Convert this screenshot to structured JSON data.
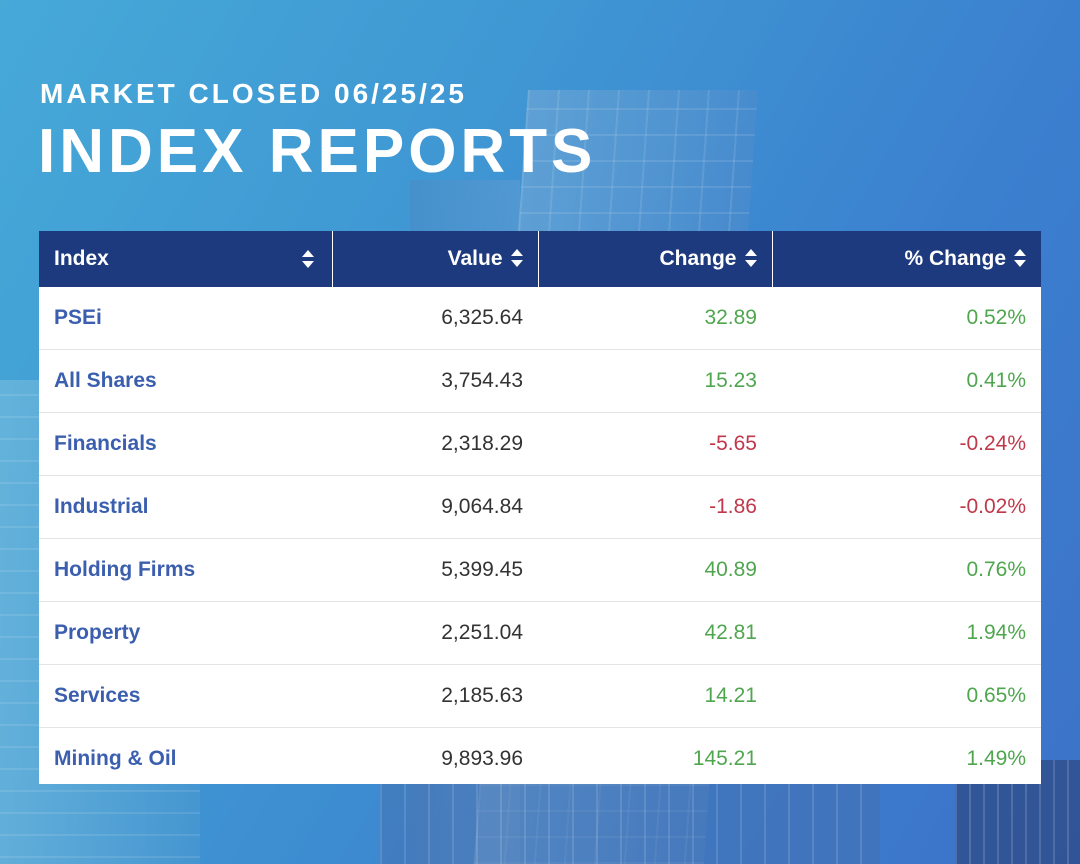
{
  "header": {
    "subtitle": "MARKET CLOSED 06/25/25",
    "title": "INDEX REPORTS"
  },
  "table": {
    "columns": [
      "Index",
      "Value",
      "Change",
      "% Change"
    ],
    "rows": [
      {
        "index": "PSEi",
        "value": "6,325.64",
        "change": "32.89",
        "pct_change": "0.52%",
        "direction": "up"
      },
      {
        "index": "All Shares",
        "value": "3,754.43",
        "change": "15.23",
        "pct_change": "0.41%",
        "direction": "up"
      },
      {
        "index": "Financials",
        "value": "2,318.29",
        "change": "-5.65",
        "pct_change": "-0.24%",
        "direction": "down"
      },
      {
        "index": "Industrial",
        "value": "9,064.84",
        "change": "-1.86",
        "pct_change": "-0.02%",
        "direction": "down"
      },
      {
        "index": "Holding Firms",
        "value": "5,399.45",
        "change": "40.89",
        "pct_change": "0.76%",
        "direction": "up"
      },
      {
        "index": "Property",
        "value": "2,251.04",
        "change": "42.81",
        "pct_change": "1.94%",
        "direction": "up"
      },
      {
        "index": "Services",
        "value": "2,185.63",
        "change": "14.21",
        "pct_change": "0.65%",
        "direction": "up"
      },
      {
        "index": "Mining & Oil",
        "value": "9,893.96",
        "change": "145.21",
        "pct_change": "1.49%",
        "direction": "up"
      }
    ]
  },
  "colors": {
    "header_bg": "#1d3a7e",
    "index_link": "#3b5fae",
    "positive": "#4fa64f",
    "negative": "#c0384b"
  }
}
